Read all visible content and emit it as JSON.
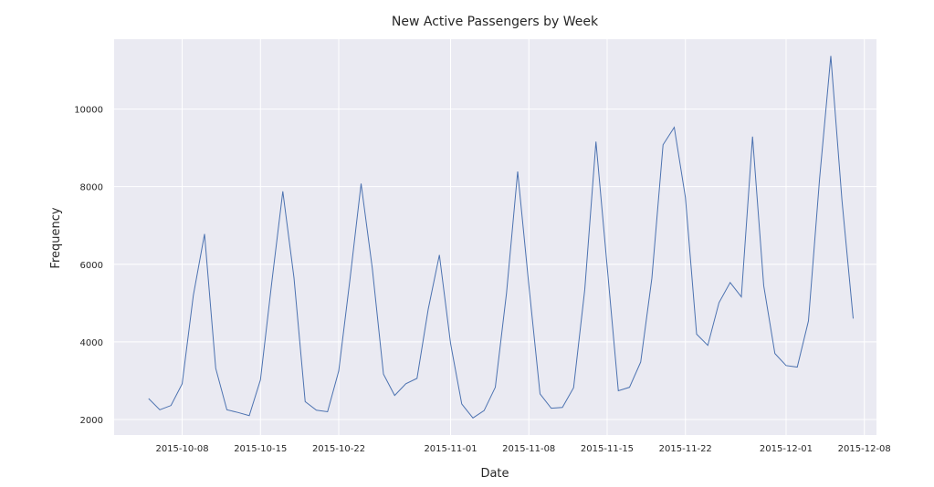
{
  "chart_data": {
    "type": "line",
    "title": "New Active Passengers by Week",
    "xlabel": "Date",
    "ylabel": "Frequency",
    "grid": true,
    "background_color": "#eaeaf2",
    "series_color": "#4c72b0",
    "x_ticks": [
      "2015-10-08",
      "2015-10-15",
      "2015-10-22",
      "2015-11-01",
      "2015-11-08",
      "2015-11-15",
      "2015-11-22",
      "2015-12-01",
      "2015-12-08"
    ],
    "y_ticks": [
      2000,
      4000,
      6000,
      8000,
      10000
    ],
    "xlim": [
      "2015-10-01T22:00",
      "2015-12-09T02:00"
    ],
    "ylim": [
      1600,
      11800
    ],
    "series": [
      {
        "x": [
          "2015-10-05",
          "2015-10-06",
          "2015-10-07",
          "2015-10-08",
          "2015-10-09",
          "2015-10-10",
          "2015-10-11",
          "2015-10-12",
          "2015-10-13",
          "2015-10-14",
          "2015-10-15",
          "2015-10-16",
          "2015-10-17",
          "2015-10-18",
          "2015-10-19",
          "2015-10-20",
          "2015-10-21",
          "2015-10-22",
          "2015-10-23",
          "2015-10-24",
          "2015-10-25",
          "2015-10-26",
          "2015-10-27",
          "2015-10-28",
          "2015-10-29",
          "2015-10-30",
          "2015-10-31",
          "2015-11-01",
          "2015-11-02",
          "2015-11-03",
          "2015-11-04",
          "2015-11-05",
          "2015-11-06",
          "2015-11-07",
          "2015-11-08",
          "2015-11-09",
          "2015-11-10",
          "2015-11-11",
          "2015-11-12",
          "2015-11-13",
          "2015-11-14",
          "2015-11-15",
          "2015-11-16",
          "2015-11-17",
          "2015-11-18",
          "2015-11-19",
          "2015-11-20",
          "2015-11-21",
          "2015-11-22",
          "2015-11-23",
          "2015-11-24",
          "2015-11-25",
          "2015-11-26",
          "2015-11-27",
          "2015-11-28",
          "2015-11-29",
          "2015-11-30",
          "2015-12-01",
          "2015-12-02",
          "2015-12-03",
          "2015-12-04",
          "2015-12-05",
          "2015-12-06",
          "2015-12-07"
        ],
        "values": [
          2540,
          2250,
          2360,
          2920,
          5200,
          6780,
          3320,
          2250,
          2180,
          2100,
          3020,
          5500,
          7880,
          5650,
          2460,
          2240,
          2200,
          3250,
          5600,
          8080,
          5900,
          3170,
          2620,
          2920,
          3060,
          4840,
          6240,
          3960,
          2400,
          2040,
          2230,
          2830,
          5250,
          8390,
          5460,
          2660,
          2290,
          2310,
          2820,
          5350,
          9160,
          5950,
          2740,
          2830,
          3480,
          5640,
          9080,
          9530,
          7720,
          4200,
          3910,
          5010,
          5530,
          5160,
          9290,
          5450,
          3700,
          3390,
          3350,
          4540,
          8220,
          11370,
          7640,
          4600
        ]
      }
    ]
  }
}
